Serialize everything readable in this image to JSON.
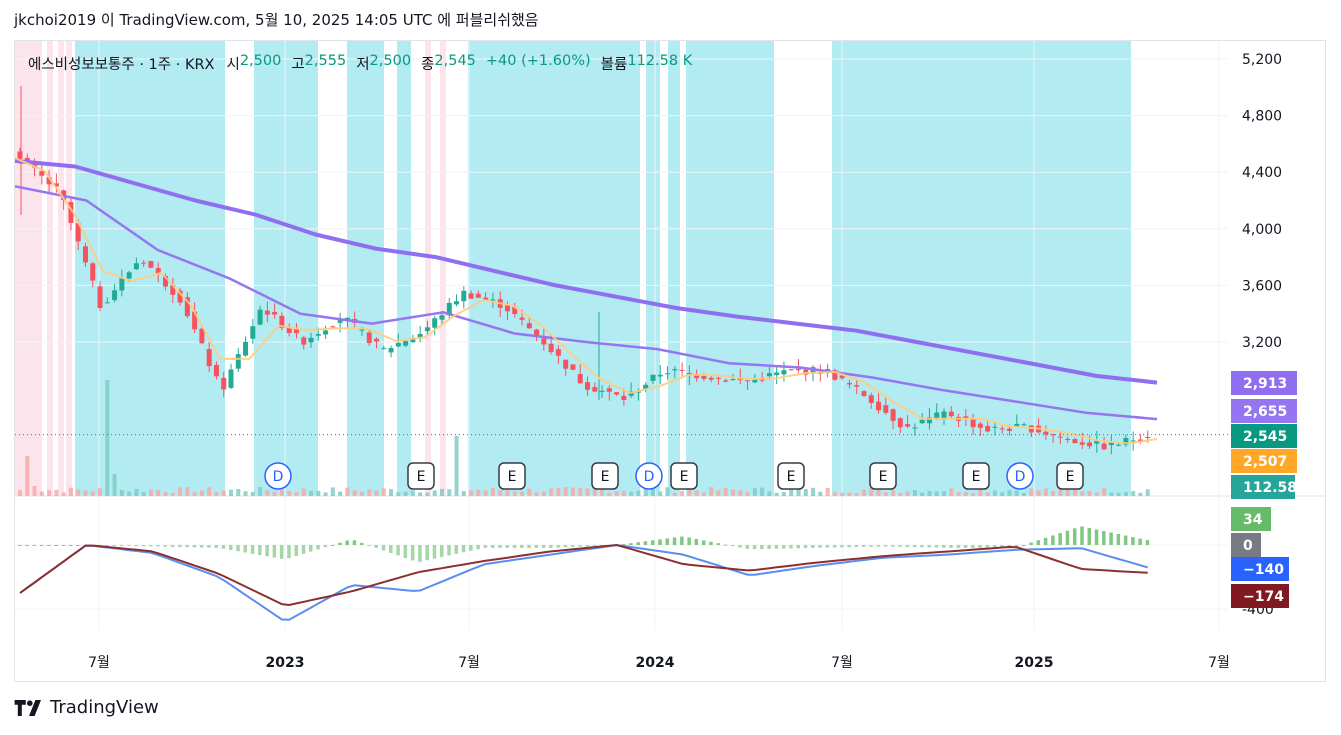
{
  "header": {
    "text": "jkchoi2019 이 TradingView.com, 5월 10, 2025 14:05 UTC 에 퍼블리쉬했음"
  },
  "legend": {
    "symbol": "에스비성보보통주 · 1주 · KRX",
    "open_label": "시",
    "open": "2,500",
    "high_label": "고",
    "high": "2,555",
    "low_label": "저",
    "low": "2,500",
    "close_label": "종",
    "close": "2,545",
    "change": "+40 (+1.60%)",
    "volume_label": "볼륨",
    "volume": "112.58 K"
  },
  "footer": {
    "brand": "TradingView"
  },
  "colors": {
    "up": "#089981",
    "down": "#f23645",
    "up_candle": "#22ab94",
    "down_candle": "#f7525f",
    "bg_blue": "#b2ebf2",
    "bg_pink": "#fce4ec",
    "ma_long": "#8f6ef0",
    "ma_mid": "#9575f0",
    "ma_short": "#ffcc80",
    "macd": "#5b8def",
    "signal": "#8b2f2f",
    "hist_up": "#a5d6a7",
    "hist_down": "#a5d6a7"
  },
  "chart_data": [
    {
      "type": "candlestick",
      "title": "에스비성보보통주 · 1주 · KRX",
      "x_axis_labels": [
        "7월",
        "2023",
        "7월",
        "2024",
        "7월",
        "2025",
        "7월"
      ],
      "y_axis_ticks": [
        5200,
        4800,
        4400,
        4000,
        3600,
        3200
      ],
      "y_axis_tick_labels": [
        "5,200",
        "4,800",
        "4,400",
        "4,000",
        "3,600",
        "3,200"
      ],
      "ylim": [
        2300,
        5300
      ],
      "price_badges": [
        {
          "label": "2,913",
          "value": 2913,
          "color": "#8f6ef0"
        },
        {
          "label": "2,655",
          "value": 2655,
          "color": "#9575f0"
        },
        {
          "label": "2,545",
          "value": 2545,
          "color": "#089981"
        },
        {
          "label": "2,507",
          "value": 2507,
          "color": "#ffa726"
        },
        {
          "label": "112.58 K",
          "value": 112580,
          "color": "#26a69a"
        }
      ],
      "event_markers": [
        {
          "label": "D",
          "date": "2022-10"
        },
        {
          "label": "E",
          "date": "2023-05"
        },
        {
          "label": "E",
          "date": "2023-08"
        },
        {
          "label": "E",
          "date": "2023-11"
        },
        {
          "label": "D",
          "date": "2023-12"
        },
        {
          "label": "E",
          "date": "2024-01"
        },
        {
          "label": "E",
          "date": "2024-05"
        },
        {
          "label": "E",
          "date": "2024-08"
        },
        {
          "label": "E",
          "date": "2024-11"
        },
        {
          "label": "D",
          "date": "2024-12"
        },
        {
          "label": "E",
          "date": "2025-02"
        }
      ],
      "series": [
        {
          "name": "MA long",
          "values_approx": [
            4480,
            4440,
            4320,
            4200,
            4100,
            3960,
            3860,
            3800,
            3700,
            3600,
            3520,
            3440,
            3380,
            3330,
            3280,
            3200,
            3120,
            3040,
            2960,
            2913
          ]
        },
        {
          "name": "MA mid",
          "values_approx": [
            4300,
            4200,
            3850,
            3650,
            3400,
            3330,
            3410,
            3260,
            3200,
            3150,
            3050,
            3020,
            2950,
            2860,
            2780,
            2700,
            2655
          ]
        },
        {
          "name": "price",
          "values_approx": [
            4500,
            4250,
            3450,
            3800,
            3500,
            2850,
            3450,
            3200,
            3380,
            3140,
            3270,
            3550,
            3460,
            3200,
            2900,
            2800,
            3000,
            2960,
            2920,
            2990,
            3000,
            2820,
            2590,
            2700,
            2580,
            2600,
            2510,
            2460,
            2545
          ]
        }
      ]
    },
    {
      "type": "line",
      "title": "MACD",
      "y_axis_tick_labels": [
        "0",
        "-400"
      ],
      "price_badges": [
        {
          "label": "34",
          "value": 34,
          "color": "#66bb6a"
        },
        {
          "label": "0",
          "value": 0,
          "color": "#787b86"
        },
        {
          "label": "−140",
          "value": -140,
          "color": "#2962ff"
        },
        {
          "label": "−174",
          "value": -174,
          "color": "#801922"
        }
      ],
      "series": [
        {
          "name": "MACD",
          "values_approx": [
            -300,
            0,
            -50,
            -200,
            -480,
            -250,
            -290,
            -120,
            -60,
            0,
            -60,
            -190,
            -130,
            -80,
            -60,
            -30,
            -20,
            -140
          ]
        },
        {
          "name": "signal",
          "values_approx": [
            -300,
            0,
            -40,
            -180,
            -380,
            -290,
            -170,
            -100,
            -40,
            0,
            -120,
            -160,
            -110,
            -70,
            -40,
            -10,
            -150,
            -174
          ]
        }
      ]
    }
  ]
}
